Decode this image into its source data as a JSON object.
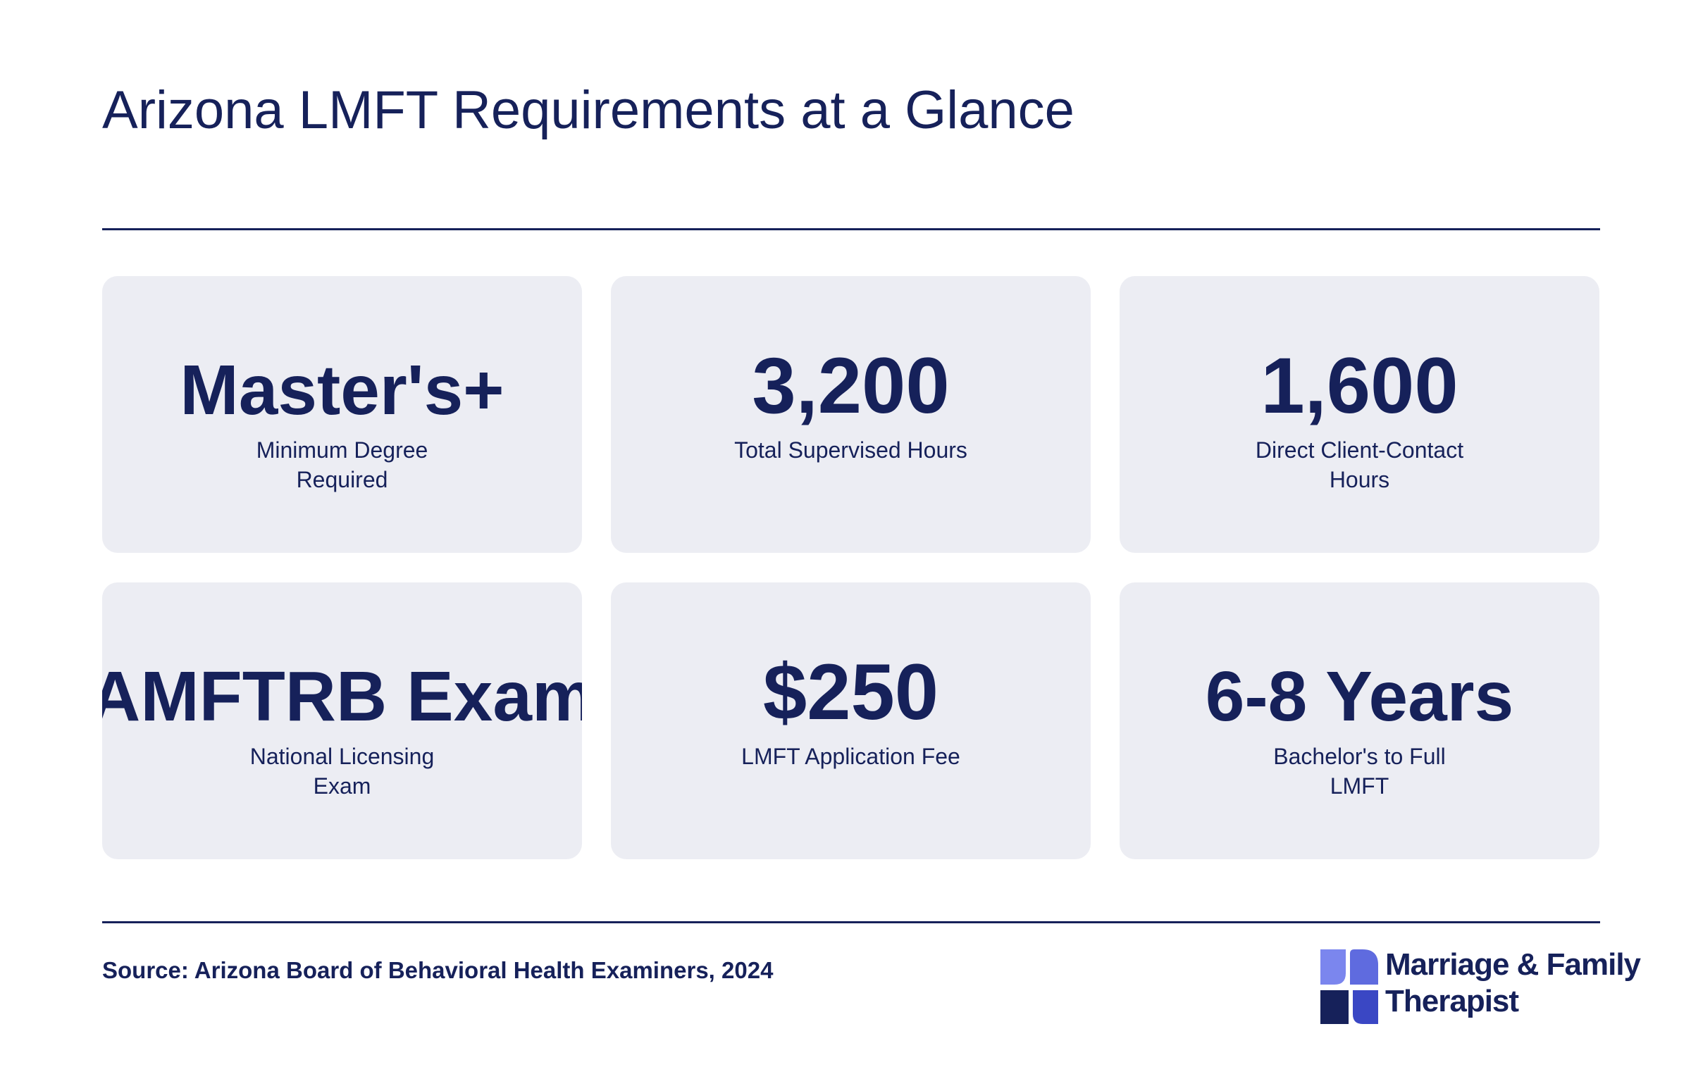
{
  "header": {
    "title": "Arizona LMFT Requirements at a Glance"
  },
  "cards": [
    {
      "value": "Master's+",
      "label": "Minimum Degree Required"
    },
    {
      "value": "3,200",
      "label": "Total Supervised Hours"
    },
    {
      "value": "1,600",
      "label": "Direct Client-Contact Hours"
    },
    {
      "value": "AMFTRB Exam",
      "label": "National Licensing Exam"
    },
    {
      "value": "$250",
      "label": "LMFT Application Fee"
    },
    {
      "value": "6-8 Years",
      "label": "Bachelor's to Full LMFT"
    }
  ],
  "footer": {
    "source": "Source: Arizona Board of Behavioral Health Examiners, 2024",
    "logo_line1": "Marriage & Family",
    "logo_line2": "Therapist"
  },
  "colors": {
    "navy": "#16215a",
    "card_bg": "#ecedf3",
    "logo_light": "#7b86ee",
    "logo_mid": "#3a47c4",
    "logo_dark": "#16215a"
  }
}
